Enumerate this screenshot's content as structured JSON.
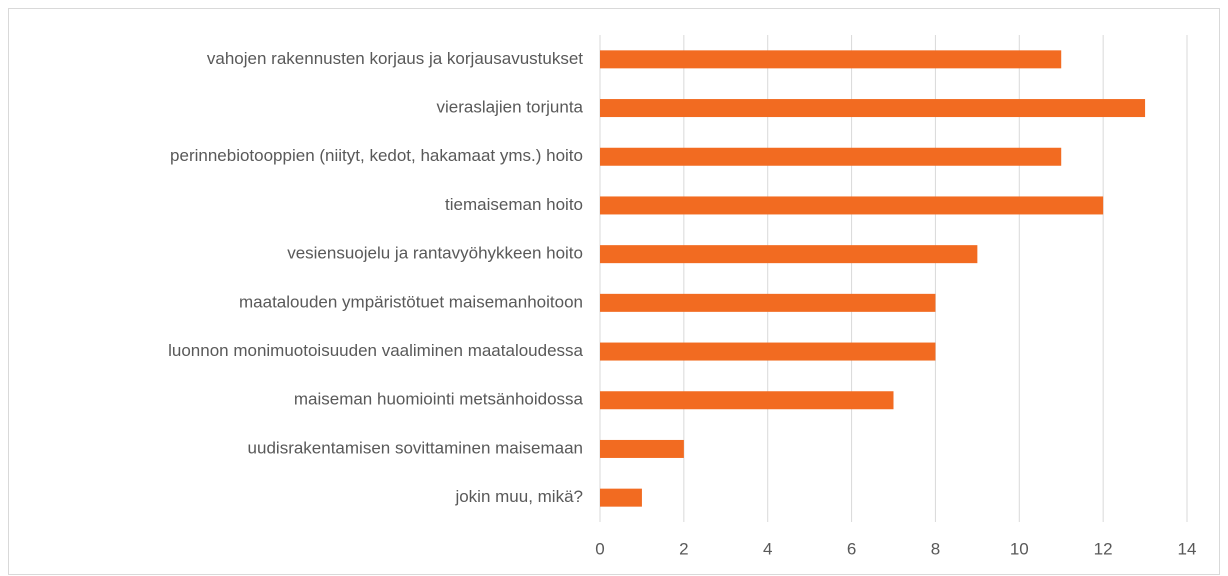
{
  "chart_data": {
    "type": "bar",
    "orientation": "horizontal",
    "categories": [
      "vahojen rakennusten korjaus ja korjausavustukset",
      "vieraslajien torjunta",
      "perinnebiotooppien (niityt, kedot, hakamaat yms.) hoito",
      "tiemaiseman hoito",
      "vesiensuojelu ja rantavyöhykkeen hoito",
      "maatalouden ympäristötuet maisemanhoitoon",
      "luonnon monimuotoisuuden vaaliminen maataloudessa",
      "maiseman huomiointi metsänhoidossa",
      "uudisrakentamisen sovittaminen maisemaan",
      "jokin muu, mikä?"
    ],
    "values": [
      11,
      13,
      11,
      12,
      9,
      8,
      8,
      7,
      2,
      1
    ],
    "color": "#f26b21",
    "xlim": [
      0,
      14
    ],
    "xticks": [
      0,
      2,
      4,
      6,
      8,
      10,
      12,
      14
    ],
    "grid": true
  }
}
